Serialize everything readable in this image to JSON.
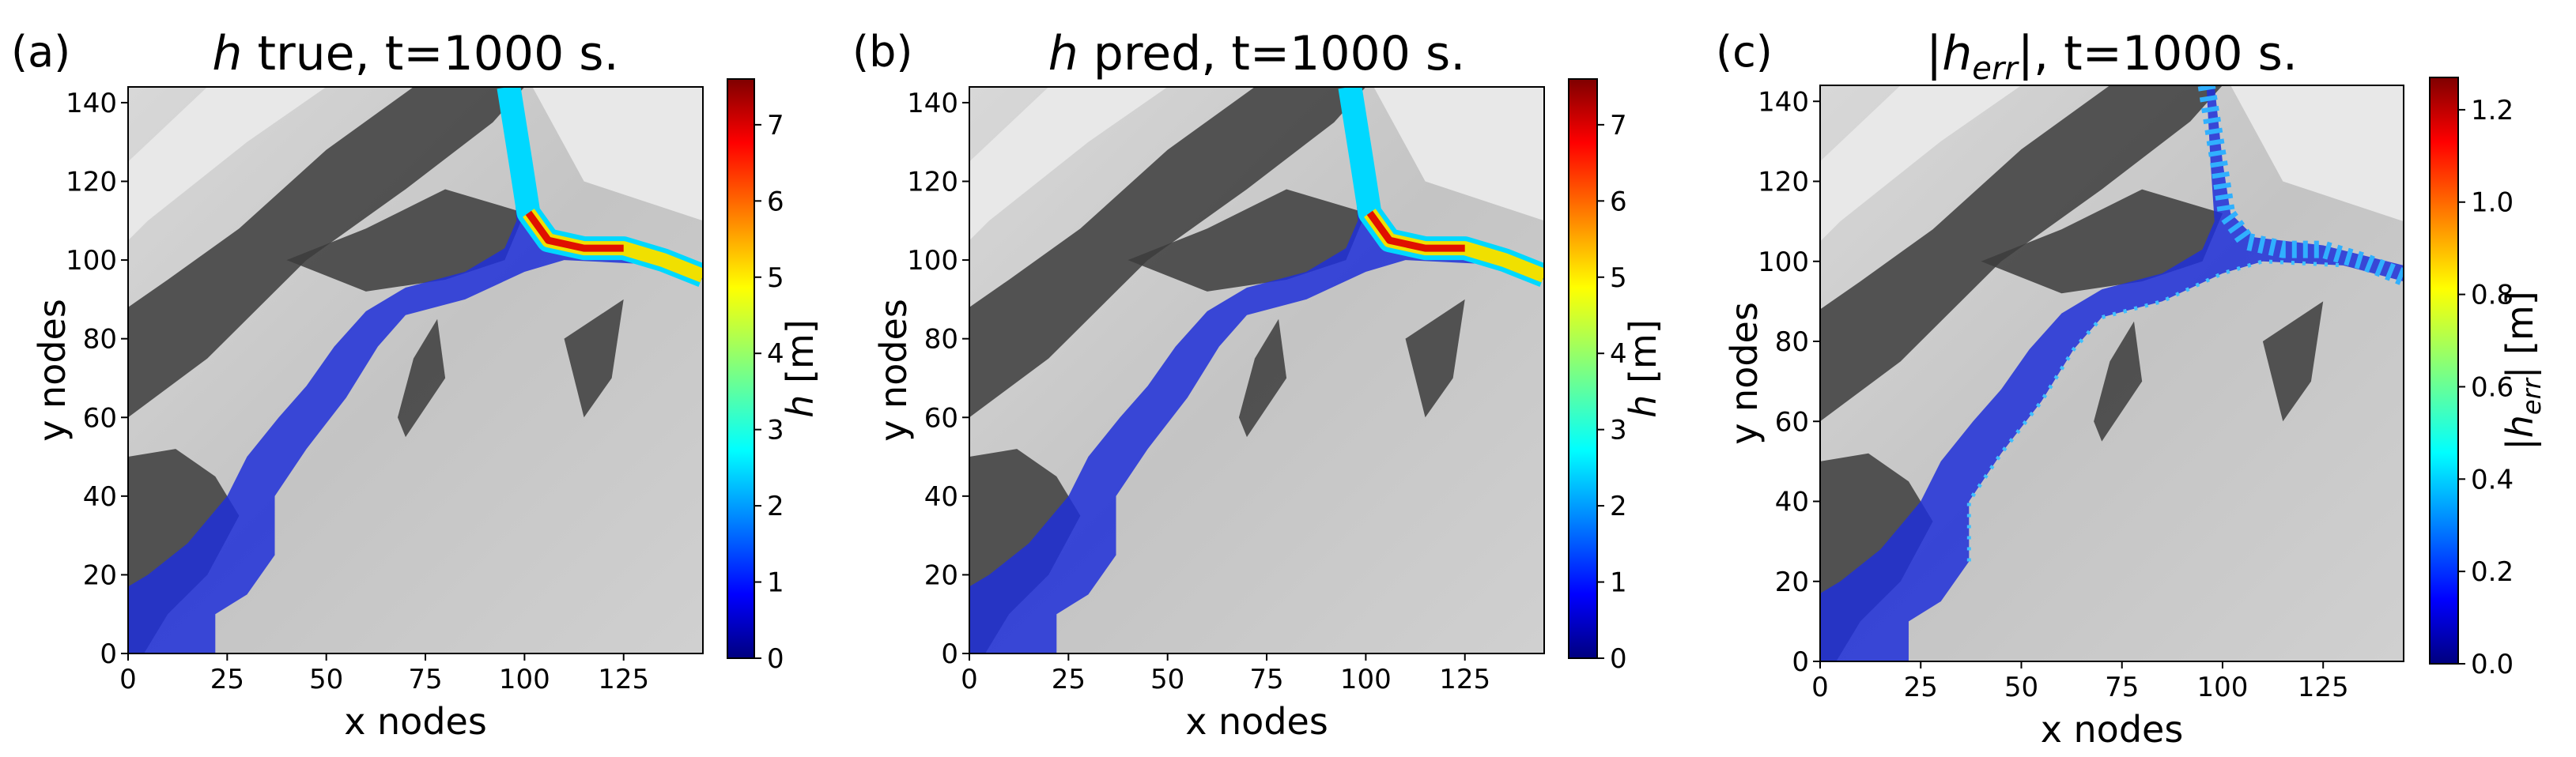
{
  "chart_data": [
    {
      "type": "heatmap",
      "panel_label": "(a)",
      "title": [
        "h",
        " true, t=1000 s."
      ],
      "x_label": "x nodes",
      "y_label": "y nodes",
      "colorbar_label": [
        "h",
        " [m]"
      ],
      "colormap": "jet",
      "xlim": [
        0,
        145
      ],
      "ylim": [
        0,
        144
      ],
      "xticks": [
        0,
        25,
        50,
        75,
        100,
        125
      ],
      "yticks": [
        0,
        20,
        40,
        60,
        80,
        100,
        120,
        140
      ],
      "clim": [
        0,
        7.6
      ],
      "cticks": [
        0,
        1,
        2,
        3,
        4,
        5,
        6,
        7
      ]
    },
    {
      "type": "heatmap",
      "panel_label": "(b)",
      "title": [
        "h",
        " pred, t=1000 s."
      ],
      "x_label": "x nodes",
      "y_label": "y nodes",
      "colorbar_label": [
        "h",
        " [m]"
      ],
      "colormap": "jet",
      "xlim": [
        0,
        145
      ],
      "ylim": [
        0,
        144
      ],
      "xticks": [
        0,
        25,
        50,
        75,
        100,
        125
      ],
      "yticks": [
        0,
        20,
        40,
        60,
        80,
        100,
        120,
        140
      ],
      "clim": [
        0,
        7.6
      ],
      "cticks": [
        0,
        1,
        2,
        3,
        4,
        5,
        6,
        7
      ]
    },
    {
      "type": "heatmap",
      "panel_label": "(c)",
      "title": [
        "|",
        "h",
        "err",
        "|, t=1000 s."
      ],
      "x_label": "x nodes",
      "y_label": "y nodes",
      "colorbar_label": [
        "|",
        "h",
        "err",
        "| [m]"
      ],
      "colormap": "jet",
      "xlim": [
        0,
        145
      ],
      "ylim": [
        0,
        144
      ],
      "xticks": [
        0,
        25,
        50,
        75,
        100,
        125
      ],
      "yticks": [
        0,
        20,
        40,
        60,
        80,
        100,
        120,
        140
      ],
      "clim": [
        0,
        1.27
      ],
      "cticks": [
        {
          "value": 0,
          "label": "0.0"
        },
        {
          "value": 0.2,
          "label": "0.2"
        },
        {
          "value": 0.4,
          "label": "0.4"
        },
        {
          "value": 0.6,
          "label": "0.6"
        },
        {
          "value": 0.8,
          "label": "0.8"
        },
        {
          "value": 1.0,
          "label": "1.0"
        },
        {
          "value": 1.2,
          "label": "1.2"
        }
      ]
    }
  ]
}
